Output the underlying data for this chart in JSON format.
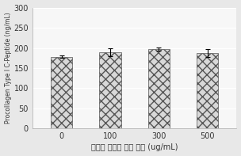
{
  "categories": [
    "0",
    "100",
    "300",
    "500"
  ],
  "values": [
    178,
    190,
    197,
    187
  ],
  "errors": [
    3,
    10,
    4,
    10
  ],
  "xlabel": "한련화 주출물 처리 농도 (ug/mL)",
  "ylabel": "Procollagen Type I C-Peptide (ng/mL)",
  "ylim": [
    0,
    300
  ],
  "yticks": [
    0,
    50,
    100,
    150,
    200,
    250,
    300
  ],
  "bar_color": "#d8d8d8",
  "hatch": "xxx",
  "plot_bg": "#f7f7f7",
  "fig_bg": "#e8e8e8",
  "grid_color": "#ffffff",
  "xlabel_fontsize": 7,
  "ylabel_fontsize": 5.5,
  "tick_fontsize": 7,
  "bar_width": 0.45
}
